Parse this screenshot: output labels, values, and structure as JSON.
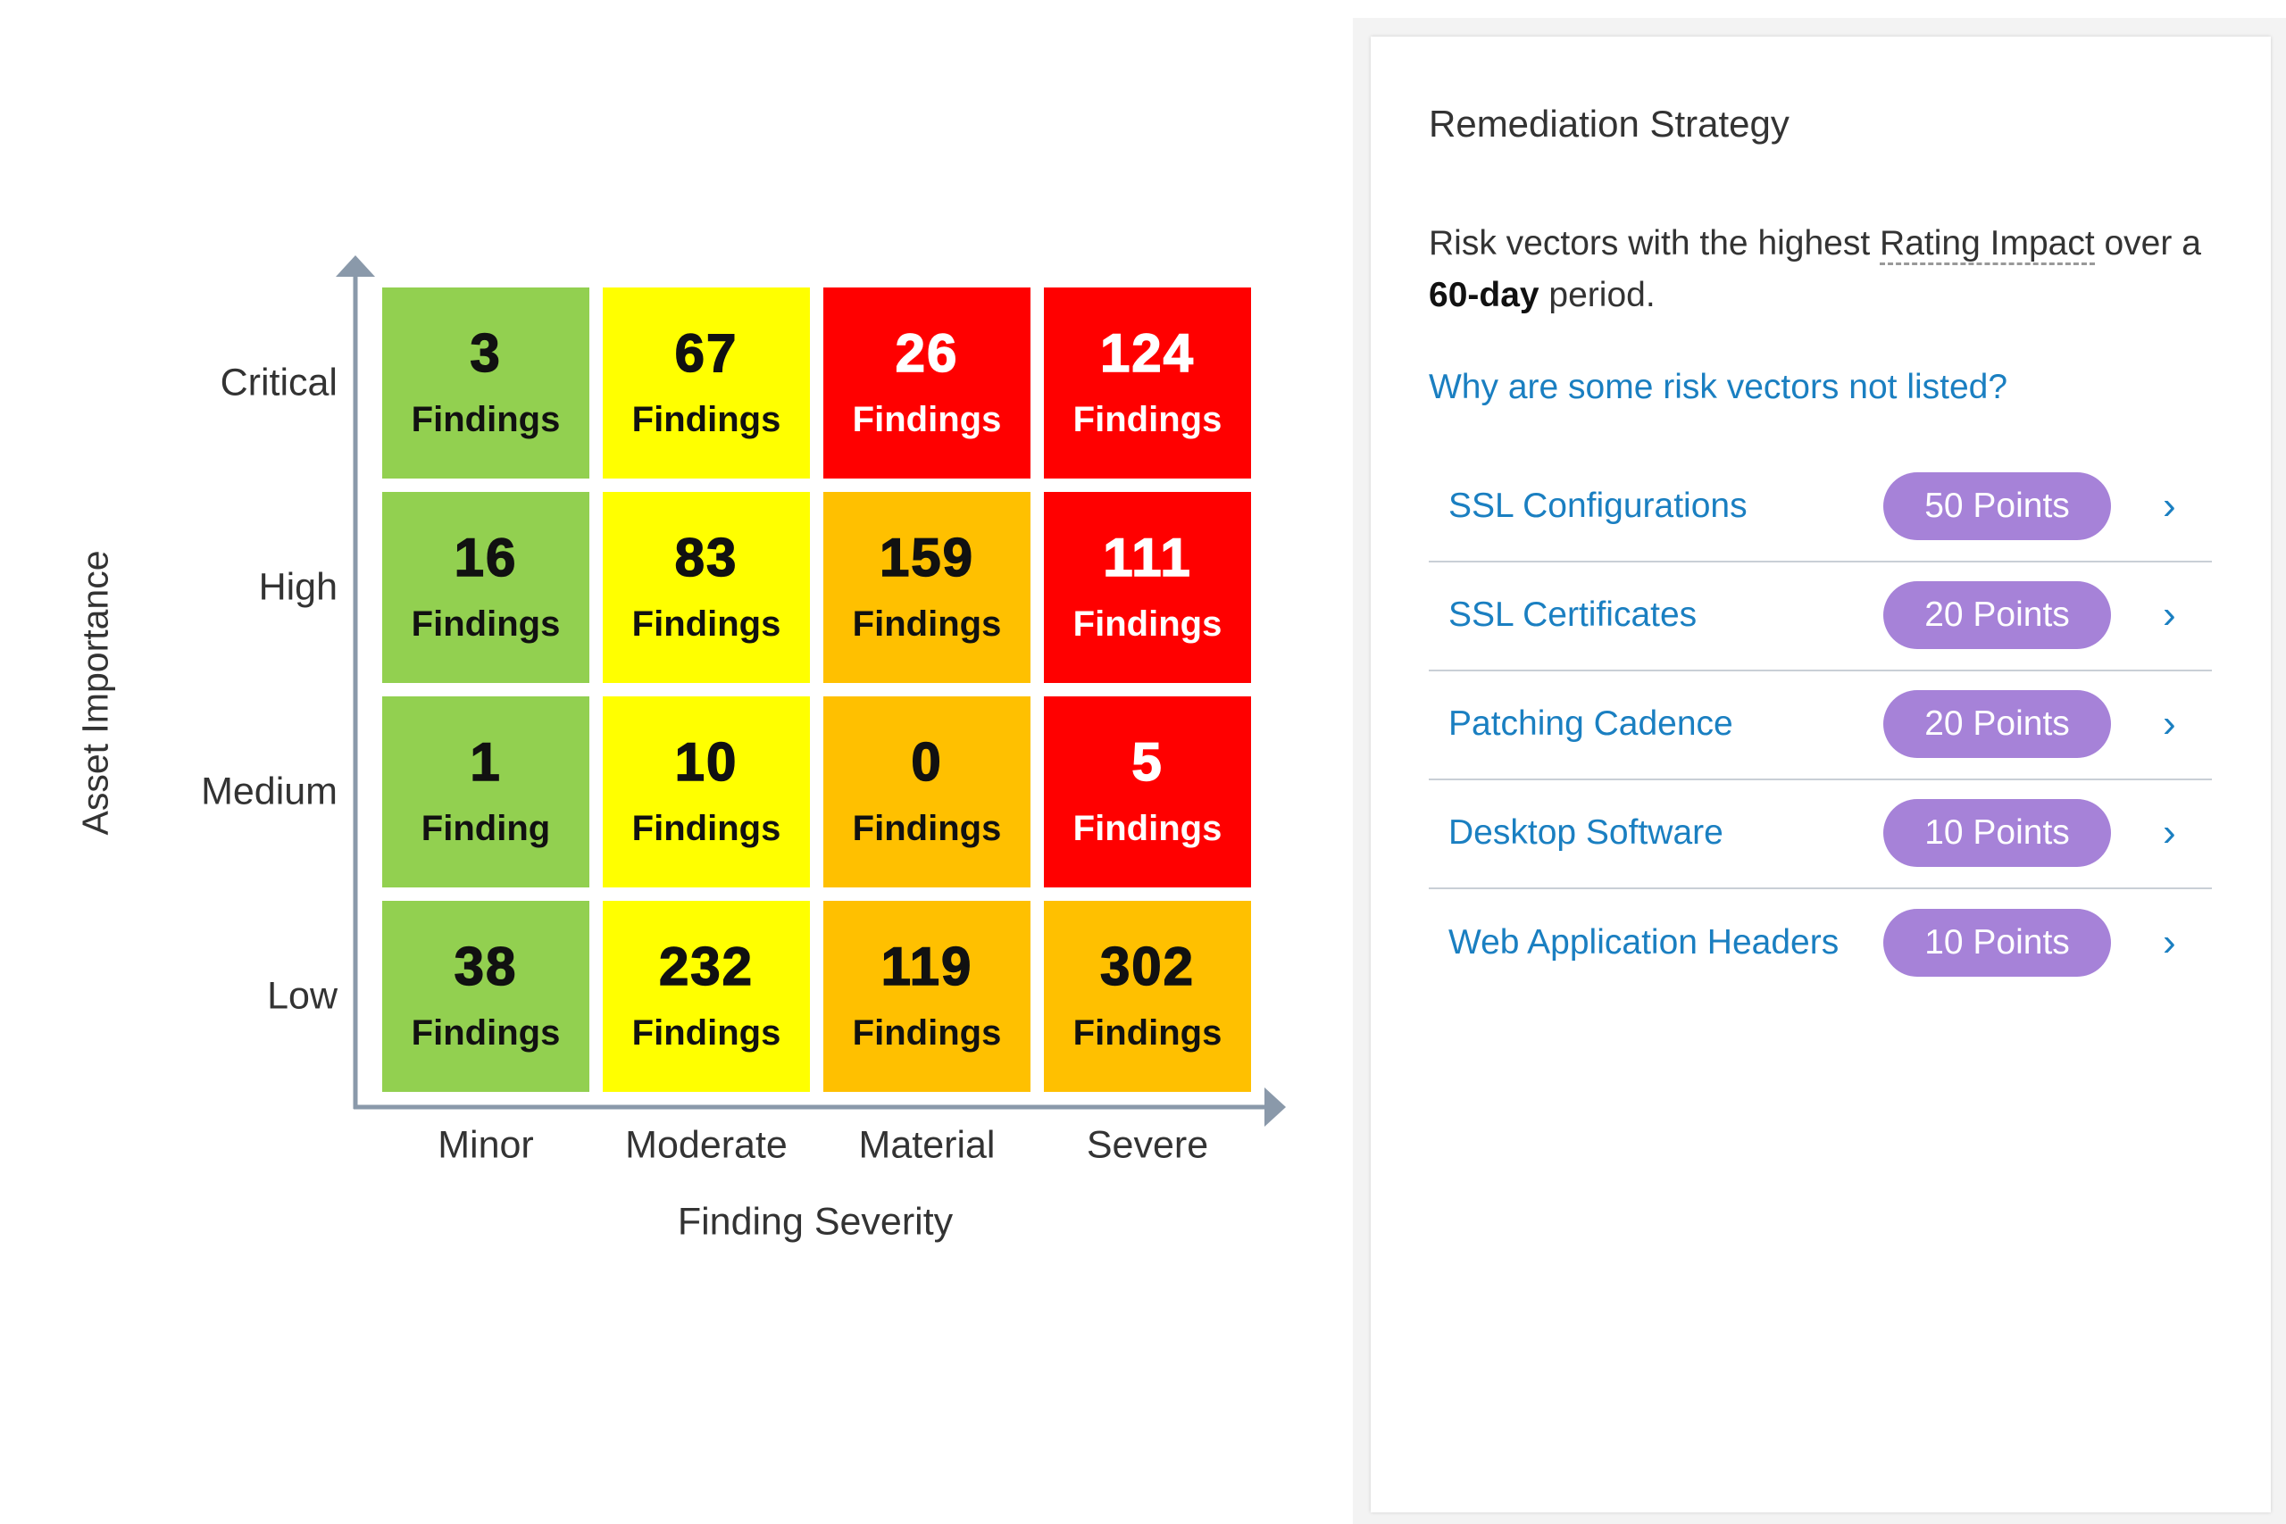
{
  "matrix": {
    "y_axis_label": "Asset Importance",
    "x_axis_label": "Finding Severity",
    "rows": [
      "Critical",
      "High",
      "Medium",
      "Low"
    ],
    "columns": [
      "Minor",
      "Moderate",
      "Material",
      "Severe"
    ],
    "cells": [
      [
        {
          "count": 3,
          "label": "Findings",
          "color": "#92d050"
        },
        {
          "count": 67,
          "label": "Findings",
          "color": "#ffff00"
        },
        {
          "count": 26,
          "label": "Findings",
          "color": "#ff0000"
        },
        {
          "count": 124,
          "label": "Findings",
          "color": "#ff0000"
        }
      ],
      [
        {
          "count": 16,
          "label": "Findings",
          "color": "#92d050"
        },
        {
          "count": 83,
          "label": "Findings",
          "color": "#ffff00"
        },
        {
          "count": 159,
          "label": "Findings",
          "color": "#ffc000"
        },
        {
          "count": 111,
          "label": "Findings",
          "color": "#ff0000"
        }
      ],
      [
        {
          "count": 1,
          "label": "Finding",
          "color": "#92d050"
        },
        {
          "count": 10,
          "label": "Findings",
          "color": "#ffff00"
        },
        {
          "count": 0,
          "label": "Findings",
          "color": "#ffc000"
        },
        {
          "count": 5,
          "label": "Findings",
          "color": "#ff0000"
        }
      ],
      [
        {
          "count": 38,
          "label": "Findings",
          "color": "#92d050"
        },
        {
          "count": 232,
          "label": "Findings",
          "color": "#ffff00"
        },
        {
          "count": 119,
          "label": "Findings",
          "color": "#ffc000"
        },
        {
          "count": 302,
          "label": "Findings",
          "color": "#ffc000"
        }
      ]
    ]
  },
  "panel": {
    "title": "Remediation Strategy",
    "description": [
      "Risk vectors with the highest ",
      "Rating Impact",
      " over a ",
      "60-day",
      " period."
    ],
    "link": "Why are some risk vectors not listed?",
    "items": [
      {
        "name": "SSL Configurations",
        "points": "50 Points"
      },
      {
        "name": "SSL Certificates",
        "points": "20 Points"
      },
      {
        "name": "Patching Cadence",
        "points": "20 Points"
      },
      {
        "name": "Desktop Software",
        "points": "10 Points"
      },
      {
        "name": "Web Application Headers",
        "points": "10 Points"
      }
    ]
  }
}
